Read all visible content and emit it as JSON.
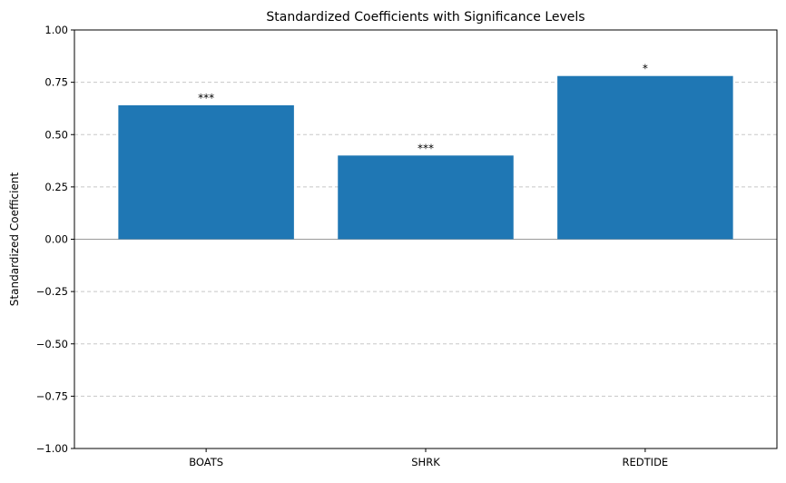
{
  "chart_data": {
    "type": "bar",
    "title": "Standardized Coefficients with Significance Levels",
    "xlabel": "",
    "ylabel": "Standardized Coefficient",
    "categories": [
      "BOATS",
      "SHRK",
      "REDTIDE"
    ],
    "values": [
      0.64,
      0.4,
      0.78
    ],
    "annotations": [
      "***",
      "***",
      "*"
    ],
    "ylim": [
      -1.0,
      1.0
    ],
    "yticks": [
      -1.0,
      -0.75,
      -0.5,
      -0.25,
      0.0,
      0.25,
      0.5,
      0.75,
      1.0
    ],
    "ytick_labels": [
      "−1.00",
      "−0.75",
      "−0.50",
      "−0.25",
      "0.00",
      "0.25",
      "0.50",
      "0.75",
      "1.00"
    ],
    "grid": "y-dashed",
    "zero_line": true,
    "bar_color": "#1f77b4",
    "grid_color": "#c8c8c8",
    "zero_line_color": "#999999"
  }
}
